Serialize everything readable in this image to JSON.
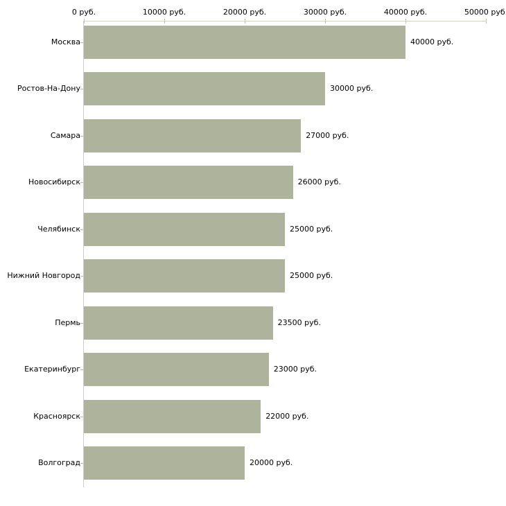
{
  "chart_data": {
    "type": "bar",
    "orientation": "horizontal",
    "title": "",
    "xlabel": "",
    "ylabel": "",
    "unit_suffix": " руб.",
    "xlim": [
      0,
      50000
    ],
    "grid": false,
    "legend": false,
    "x_axis": {
      "ticks": [
        {
          "value": 0,
          "label": "0 руб."
        },
        {
          "value": 10000,
          "label": "10000 руб."
        },
        {
          "value": 20000,
          "label": "20000 руб."
        },
        {
          "value": 30000,
          "label": "30000 руб."
        },
        {
          "value": 40000,
          "label": "40000 руб."
        },
        {
          "value": 50000,
          "label": "50000 руб."
        }
      ]
    },
    "categories": [
      "Москва",
      "Ростов-На-Дону",
      "Самара",
      "Новосибирск",
      "Челябинск",
      "Нижний Новгород",
      "Пермь",
      "Екатеринбург",
      "Красноярск",
      "Волгоград"
    ],
    "values": [
      40000,
      30000,
      27000,
      26000,
      25000,
      25000,
      23500,
      23000,
      22000,
      20000
    ],
    "items": [
      {
        "city": "Москва",
        "value": 40000,
        "value_label": "40000 руб."
      },
      {
        "city": "Ростов-На-Дону",
        "value": 30000,
        "value_label": "30000 руб."
      },
      {
        "city": "Самара",
        "value": 27000,
        "value_label": "27000 руб."
      },
      {
        "city": "Новосибирск",
        "value": 26000,
        "value_label": "26000 руб."
      },
      {
        "city": "Челябинск",
        "value": 25000,
        "value_label": "25000 руб."
      },
      {
        "city": "Нижний Новгород",
        "value": 25000,
        "value_label": "25000 руб."
      },
      {
        "city": "Пермь",
        "value": 23500,
        "value_label": "23500 руб."
      },
      {
        "city": "Екатеринбург",
        "value": 23000,
        "value_label": "23000 руб."
      },
      {
        "city": "Красноярск",
        "value": 22000,
        "value_label": "22000 руб."
      },
      {
        "city": "Волгоград",
        "value": 20000,
        "value_label": "20000 руб."
      }
    ],
    "colors": {
      "bar_fill": "#aeb49b",
      "x_axis_line": "#d2d2c0",
      "x_tick_mark": "#c2c2a2",
      "y_axis_line": "#cccccc",
      "y_tick_mark": "#b4b4b4",
      "text": "#000000",
      "background": "#ffffff"
    }
  }
}
